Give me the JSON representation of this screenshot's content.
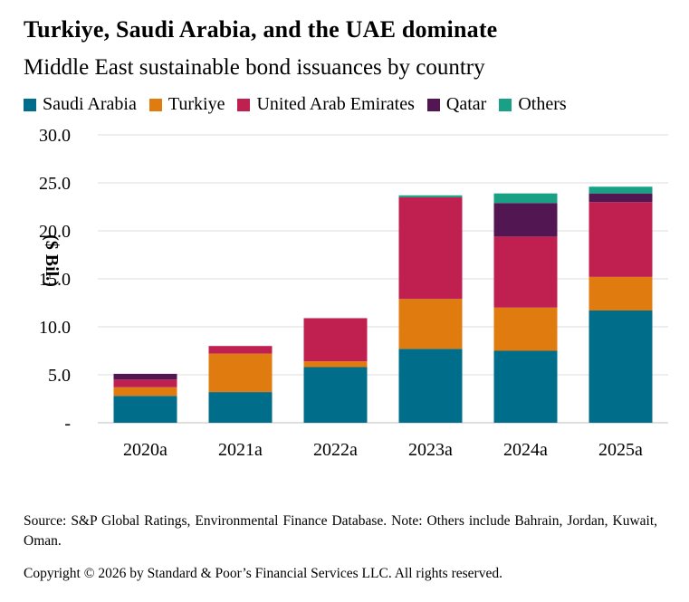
{
  "title": "Turkiye, Saudi Arabia, and the UAE dominate",
  "subtitle": "Middle East sustainable bond issuances by country",
  "footnote": "Source: S&P Global Ratings, Environmental Finance Database. Note: Others include Bahrain, Jordan, Kuwait, Oman.",
  "copyright": "Copyright © 2026 by Standard & Poor’s Financial Services LLC. All rights reserved.",
  "chart_data": {
    "type": "bar",
    "stacked": true,
    "title": "Turkiye, Saudi Arabia, and the UAE dominate",
    "subtitle": "Middle East sustainable bond issuances by country",
    "ylabel": "($ Bil.)",
    "xlabel": "",
    "ylim": [
      0,
      30
    ],
    "yticks": [
      0,
      5,
      10,
      15,
      20,
      25,
      30
    ],
    "ytick_labels": [
      "-",
      "5.0",
      "10.0",
      "15.0",
      "20.0",
      "25.0",
      "30.0"
    ],
    "grid": true,
    "legend_position": "top",
    "categories": [
      "2020a",
      "2021a",
      "2022a",
      "2023a",
      "2024a",
      "2025a"
    ],
    "series": [
      {
        "name": "Saudi Arabia",
        "color": "#006e8a",
        "values": [
          2.8,
          3.2,
          5.8,
          7.7,
          7.5,
          11.7
        ]
      },
      {
        "name": "Turkiye",
        "color": "#e07b10",
        "values": [
          0.9,
          4.0,
          0.6,
          5.2,
          4.5,
          3.5
        ]
      },
      {
        "name": "United Arab Emirates",
        "color": "#c02050",
        "values": [
          0.8,
          0.8,
          4.5,
          10.6,
          7.4,
          7.8
        ]
      },
      {
        "name": "Qatar",
        "color": "#521752",
        "values": [
          0.6,
          0.0,
          0.0,
          0.0,
          3.5,
          0.9
        ]
      },
      {
        "name": "Others",
        "color": "#18a185",
        "values": [
          0.0,
          0.0,
          0.0,
          0.2,
          1.0,
          0.7
        ]
      }
    ]
  }
}
